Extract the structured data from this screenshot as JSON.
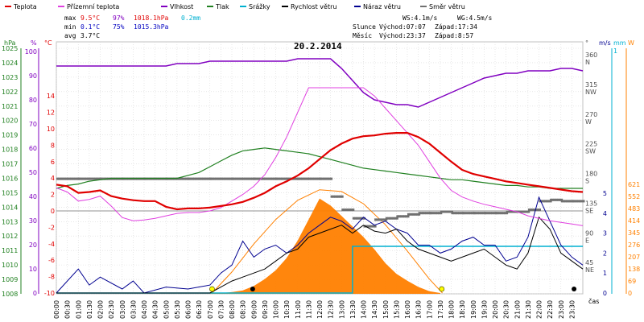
{
  "legend": [
    {
      "label": "Teplota",
      "color": "#e00000"
    },
    {
      "label": "Přízemní teplota",
      "color": "#e040e0"
    },
    {
      "label": "Vlhkost",
      "color": "#8000c0"
    },
    {
      "label": "Tlak",
      "color": "#208020"
    },
    {
      "label": "Srážky",
      "color": "#00b0d0"
    },
    {
      "label": "Rychlost větru",
      "color": "#000000"
    },
    {
      "label": "Náraz větru",
      "color": "#000090"
    },
    {
      "label": "Směr větru",
      "color": "#707070"
    }
  ],
  "stats": {
    "max_label": "max",
    "max_temp": "9.5°C",
    "max_hum": "97%",
    "max_press": "1018.1hPa",
    "max_rain": "0.2mm",
    "min_label": "min",
    "min_temp": "0.1°C",
    "min_hum": "75%",
    "min_press": "1015.3hPa",
    "avg_label": "avg",
    "avg_temp": "3.7°C"
  },
  "wind_info": {
    "ws": "WS:4.1m/s",
    "wg": "WG:4.5m/s"
  },
  "sun": {
    "label": "Slunce",
    "rise": "Východ:07:07",
    "set": "Západ:17:34"
  },
  "moon": {
    "label": "Měsíc",
    "rise": "Východ:23:37",
    "set": "Západ:8:57"
  },
  "colors": {
    "temp": "#e00000",
    "ground": "#e040e0",
    "hum": "#8000c0",
    "press": "#208020",
    "rain": "#00b0d0",
    "wind": "#000000",
    "gust": "#000090",
    "dir": "#707070",
    "solar_fill": "#ff8000",
    "solar_curve": "#ff8000",
    "grid": "#d8d8d8"
  },
  "chart_data": {
    "type": "line",
    "title": "20.2.2014",
    "x_axis_label": "čas",
    "x_ticks": [
      "00:00",
      "00:30",
      "01:00",
      "01:30",
      "02:00",
      "02:30",
      "03:00",
      "03:30",
      "04:00",
      "04:30",
      "05:00",
      "05:30",
      "06:00",
      "06:30",
      "07:00",
      "07:30",
      "08:00",
      "08:30",
      "09:00",
      "09:30",
      "10:00",
      "10:30",
      "11:00",
      "11:30",
      "12:00",
      "12:30",
      "13:00",
      "13:30",
      "14:00",
      "14:30",
      "15:00",
      "15:30",
      "16:00",
      "16:30",
      "17:00",
      "17:30",
      "18:00",
      "18:30",
      "19:00",
      "19:30",
      "20:00",
      "20:30",
      "21:00",
      "21:30",
      "22:00",
      "22:30",
      "23:00",
      "23:30"
    ],
    "axes": {
      "pressure": {
        "unit": "hPa",
        "range": [
          1008,
          1025
        ],
        "ticks": [
          "1008",
          "1009",
          "1010",
          "1011",
          "1012",
          "1013",
          "1014",
          "1015",
          "1016",
          "1017",
          "1018",
          "1019",
          "1020",
          "1021",
          "1022",
          "1023",
          "1024",
          "1025"
        ]
      },
      "humidity": {
        "unit": "%",
        "range": [
          0,
          100
        ],
        "ticks": [
          "0",
          "10",
          "20",
          "30",
          "40",
          "50",
          "60",
          "70",
          "80",
          "90",
          "100"
        ]
      },
      "temperature": {
        "unit": "°C",
        "range": [
          -10,
          15
        ],
        "ticks": [
          "-10",
          "-8",
          "-6",
          "-4",
          "-2",
          "0",
          "2",
          "4",
          "6",
          "8",
          "10",
          "12",
          "14"
        ]
      },
      "direction": {
        "unit": "°",
        "ticks": [
          "0",
          "45",
          "90",
          "135",
          "180",
          "225",
          "270",
          "315",
          "360"
        ],
        "labels": [
          "N",
          "NE",
          "E",
          "SE",
          "S",
          "SW",
          "W",
          "NW",
          "N"
        ]
      },
      "wind": {
        "unit": "m/s",
        "range": [
          0,
          5
        ],
        "ticks": [
          "0",
          "1",
          "2",
          "3",
          "4",
          "5"
        ]
      },
      "rain": {
        "unit": "mm",
        "ticks": [
          "1"
        ]
      },
      "solar": {
        "unit": "W",
        "range": [
          0,
          690
        ],
        "ticks": [
          "0",
          "69",
          "138",
          "207",
          "276",
          "345",
          "414",
          "483",
          "552",
          "621"
        ]
      }
    },
    "series": [
      {
        "name": "Teplota",
        "axis": "temperature",
        "x": [
          0,
          0.5,
          1,
          1.5,
          2,
          2.5,
          3,
          3.5,
          4,
          4.5,
          5,
          5.5,
          6,
          6.5,
          7,
          7.5,
          8,
          8.5,
          9,
          9.5,
          10,
          10.5,
          11,
          11.5,
          12,
          12.5,
          13,
          13.5,
          14,
          14.5,
          15,
          15.5,
          16,
          16.5,
          17,
          17.5,
          18,
          18.5,
          19,
          19.5,
          20,
          20.5,
          21,
          21.5,
          22,
          22.5,
          23,
          23.5,
          24
        ],
        "y": [
          3.2,
          3.0,
          2.2,
          2.3,
          2.5,
          1.8,
          1.5,
          1.3,
          1.2,
          1.2,
          0.5,
          0.2,
          0.3,
          0.3,
          0.4,
          0.6,
          0.8,
          1.1,
          1.6,
          2.2,
          3.0,
          3.6,
          4.3,
          5.2,
          6.3,
          7.4,
          8.2,
          8.8,
          9.1,
          9.2,
          9.4,
          9.5,
          9.5,
          9.0,
          8.2,
          7.1,
          6.0,
          5.0,
          4.5,
          4.2,
          3.9,
          3.6,
          3.4,
          3.2,
          3.0,
          2.8,
          2.6,
          2.4,
          2.3
        ]
      },
      {
        "name": "Přízemní teplota",
        "axis": "temperature",
        "x": [
          0,
          0.5,
          1,
          1.5,
          2,
          2.5,
          3,
          3.5,
          4,
          4.5,
          5,
          5.5,
          6,
          6.5,
          7,
          7.5,
          8,
          8.5,
          9,
          9.5,
          10,
          10.5,
          11,
          11.5,
          12,
          12.5,
          13,
          13.5,
          14,
          14.5,
          15,
          15.5,
          16,
          16.5,
          17,
          17.5,
          18,
          18.5,
          19,
          19.5,
          20,
          20.5,
          21,
          21.5,
          22,
          22.5,
          23,
          23.5,
          24
        ],
        "y": [
          2.8,
          2.3,
          1.2,
          1.4,
          1.8,
          0.6,
          -0.8,
          -1.2,
          -1.1,
          -0.9,
          -0.6,
          -0.3,
          -0.2,
          -0.2,
          0.0,
          0.4,
          1.2,
          2.0,
          3.0,
          4.4,
          6.5,
          9.0,
          12.0,
          15.0,
          15.0,
          15.0,
          15.0,
          15.0,
          15.0,
          14.0,
          12.5,
          11.0,
          9.5,
          8.0,
          6.0,
          4.0,
          2.5,
          1.7,
          1.2,
          0.8,
          0.5,
          0.2,
          -0.1,
          -0.6,
          -0.9,
          -1.2,
          -1.4,
          -1.6,
          -1.8
        ]
      },
      {
        "name": "Vlhkost",
        "axis": "humidity",
        "x": [
          0,
          0.5,
          1,
          1.5,
          2,
          2.5,
          3,
          3.5,
          4,
          4.5,
          5,
          5.5,
          6,
          6.5,
          7,
          7.5,
          8,
          8.5,
          9,
          9.5,
          10,
          10.5,
          11,
          11.5,
          12,
          12.5,
          13,
          13.5,
          14,
          14.5,
          15,
          15.5,
          16,
          16.5,
          17,
          17.5,
          18,
          18.5,
          19,
          19.5,
          20,
          20.5,
          21,
          21.5,
          22,
          22.5,
          23,
          23.5,
          24
        ],
        "y": [
          94,
          94,
          94,
          94,
          94,
          94,
          94,
          94,
          94,
          94,
          94,
          95,
          95,
          95,
          96,
          96,
          96,
          96,
          96,
          96,
          96,
          96,
          97,
          97,
          97,
          97,
          93,
          88,
          83,
          80,
          79,
          78,
          78,
          77,
          79,
          81,
          83,
          85,
          87,
          89,
          90,
          91,
          91,
          92,
          92,
          92,
          93,
          93,
          92
        ]
      },
      {
        "name": "Tlak",
        "axis": "pressure",
        "x": [
          0,
          0.5,
          1,
          1.5,
          2,
          2.5,
          3,
          3.5,
          4,
          4.5,
          5,
          5.5,
          6,
          6.5,
          7,
          7.5,
          8,
          8.5,
          9,
          9.5,
          10,
          10.5,
          11,
          11.5,
          12,
          12.5,
          13,
          13.5,
          14,
          14.5,
          15,
          15.5,
          16,
          16.5,
          17,
          17.5,
          18,
          18.5,
          19,
          19.5,
          20,
          20.5,
          21,
          21.5,
          22,
          22.5,
          23,
          23.5,
          24
        ],
        "y": [
          1015.3,
          1015.5,
          1015.6,
          1015.8,
          1015.9,
          1016.0,
          1016.0,
          1016.0,
          1016.0,
          1016.0,
          1016.0,
          1016.0,
          1016.2,
          1016.4,
          1016.8,
          1017.2,
          1017.6,
          1017.9,
          1018.0,
          1018.1,
          1018.0,
          1017.9,
          1017.8,
          1017.7,
          1017.5,
          1017.3,
          1017.1,
          1016.9,
          1016.7,
          1016.6,
          1016.5,
          1016.4,
          1016.3,
          1016.2,
          1016.1,
          1016.0,
          1015.9,
          1015.9,
          1015.8,
          1015.7,
          1015.6,
          1015.5,
          1015.5,
          1015.4,
          1015.4,
          1015.3,
          1015.3,
          1015.3,
          1015.3
        ]
      },
      {
        "name": "Srážky",
        "axis": "rain",
        "x": [
          0,
          13.5,
          13.5,
          24
        ],
        "y": [
          0,
          0,
          0.2,
          0.2
        ]
      },
      {
        "name": "Rychlost větru",
        "axis": "wind",
        "x": [
          0,
          1,
          2,
          3,
          4,
          5,
          6,
          7,
          7.5,
          8,
          8.5,
          9,
          9.5,
          10,
          10.5,
          11,
          11.5,
          12,
          12.5,
          13,
          13.5,
          14,
          14.5,
          15,
          15.5,
          16,
          16.5,
          17,
          17.5,
          18,
          18.5,
          19,
          19.5,
          20,
          20.5,
          21,
          21.5,
          22,
          22.5,
          23,
          23.5,
          24
        ],
        "y": [
          0,
          0,
          0,
          0,
          0,
          0,
          0,
          0,
          0.3,
          0.6,
          0.8,
          1.0,
          1.2,
          1.6,
          2.0,
          2.2,
          2.8,
          3.0,
          3.2,
          3.4,
          3.0,
          3.4,
          3.1,
          3.0,
          3.2,
          2.6,
          2.2,
          2.0,
          1.8,
          1.6,
          1.8,
          2.0,
          2.2,
          1.8,
          1.4,
          1.2,
          2.0,
          3.8,
          3.2,
          2.0,
          1.6,
          1.2
        ]
      },
      {
        "name": "Náraz větru",
        "axis": "wind",
        "x": [
          0,
          1,
          1.5,
          2,
          3,
          3.5,
          4,
          5,
          6,
          7,
          7.5,
          8,
          8.5,
          9,
          9.5,
          10,
          10.5,
          11,
          11.5,
          12,
          12.5,
          13,
          13.5,
          14,
          14.5,
          15,
          15.5,
          16,
          16.5,
          17,
          17.5,
          18,
          18.5,
          19,
          19.5,
          20,
          20.5,
          21,
          21.5,
          22,
          22.5,
          23,
          23.5,
          24
        ],
        "y": [
          0,
          1.2,
          0.4,
          0.8,
          0.2,
          0.6,
          0,
          0.3,
          0.2,
          0.4,
          1.0,
          1.4,
          2.6,
          1.8,
          2.2,
          2.4,
          2.0,
          2.4,
          3.0,
          3.4,
          3.8,
          3.6,
          3.2,
          3.8,
          3.4,
          3.6,
          3.2,
          3.0,
          2.4,
          2.4,
          2.0,
          2.2,
          2.6,
          2.8,
          2.4,
          2.4,
          1.6,
          1.8,
          2.8,
          4.8,
          3.6,
          2.4,
          1.8,
          1.4
        ]
      },
      {
        "name": "Směr větru",
        "axis": "direction",
        "x": [
          0,
          1,
          2,
          3,
          4,
          5,
          6,
          7,
          8,
          9,
          10,
          11,
          12,
          12.5,
          13,
          13.5,
          14,
          14.5,
          15,
          15.5,
          16,
          16.5,
          17,
          17.5,
          18,
          18.5,
          19,
          19.5,
          20,
          20.5,
          21,
          21.5,
          22,
          22.5,
          23,
          23.5,
          24
        ],
        "y": [
          172,
          172,
          172,
          172,
          172,
          172,
          172,
          172,
          172,
          172,
          172,
          172,
          172,
          145,
          125,
          112,
          100,
          110,
          112,
          115,
          118,
          120,
          120,
          122,
          120,
          120,
          120,
          120,
          120,
          122,
          122,
          125,
          138,
          140,
          138,
          138,
          138
        ]
      },
      {
        "name": "Solar",
        "axis": "solar",
        "x": [
          7.0,
          7.5,
          8.0,
          8.5,
          9.0,
          9.5,
          10.0,
          10.5,
          11.0,
          11.5,
          12.0,
          12.5,
          13.0,
          13.5,
          14.0,
          14.5,
          15.0,
          15.5,
          16.0,
          16.5,
          17.0,
          17.5
        ],
        "y": [
          0,
          0,
          5,
          15,
          40,
          80,
          130,
          200,
          300,
          420,
          540,
          500,
          440,
          380,
          320,
          250,
          170,
          110,
          70,
          35,
          10,
          0
        ]
      },
      {
        "name": "Solar max",
        "axis": "solar",
        "x": [
          7.1,
          8,
          9,
          10,
          11,
          12,
          13,
          14,
          15,
          16,
          17,
          17.6
        ],
        "y": [
          0,
          120,
          280,
          420,
          530,
          590,
          580,
          510,
          390,
          240,
          80,
          0
        ]
      }
    ]
  }
}
